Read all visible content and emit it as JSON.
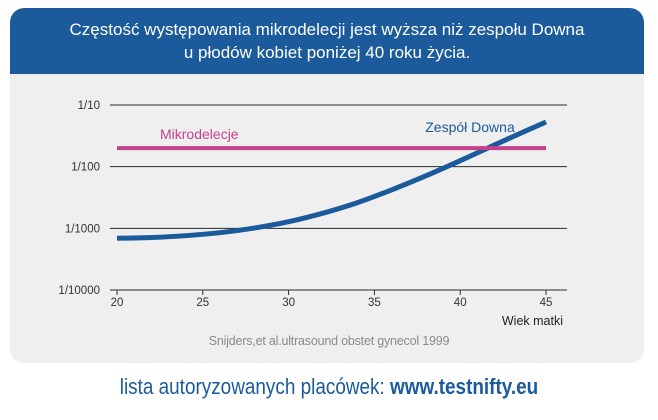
{
  "header": {
    "line1": "Częstość występowania mikrodelecji jest wyższa niż zespołu Downa",
    "line2": "u płodów kobiet poniżej 40 roku życia."
  },
  "source": "Snijders,et al.ultrasound obstet gynecol 1999",
  "footer": {
    "label": "lista autoryzowanych placówek:",
    "link": "www.testnifty.eu"
  },
  "colors": {
    "accent_blue": "#1b5a9b",
    "microdeletion_magenta": "#c4418e"
  },
  "chart_data": {
    "type": "line",
    "title": "",
    "xlabel": "Wiek matki",
    "ylabel": "",
    "y_scale": "log",
    "x_ticks": [
      20,
      25,
      30,
      35,
      40,
      45
    ],
    "y_ticks": [
      "1/10",
      "1/100",
      "1/1000",
      "1/10000"
    ],
    "y_tick_values": [
      0.1,
      0.01,
      0.001,
      0.0001
    ],
    "xlim": [
      20,
      45.5
    ],
    "ylim": [
      0.0001,
      0.1
    ],
    "grid": "horizontal",
    "series": [
      {
        "name": "Zespół Downa",
        "color": "#1b5a9b",
        "x": [
          20,
          22,
          24,
          26,
          28,
          30,
          32,
          34,
          36,
          38,
          40,
          42,
          44,
          45
        ],
        "y": [
          0.00069,
          0.00071,
          0.00076,
          0.00085,
          0.00101,
          0.00128,
          0.00176,
          0.0026,
          0.0042,
          0.0071,
          0.0125,
          0.0225,
          0.04,
          0.053
        ]
      },
      {
        "name": "Mikrodelecje",
        "color": "#c4418e",
        "x": [
          20,
          45
        ],
        "y": [
          0.02,
          0.02
        ]
      }
    ]
  }
}
